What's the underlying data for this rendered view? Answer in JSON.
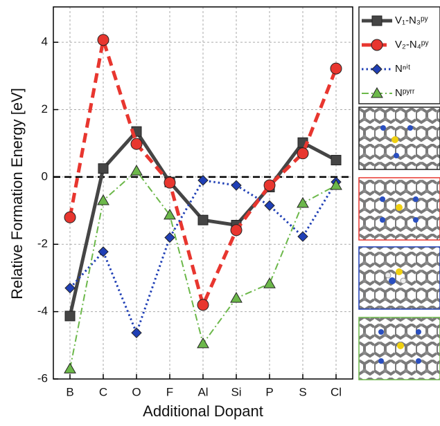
{
  "chart_data": {
    "type": "line",
    "y_label": "Relative Formation Energy  [eV]",
    "x_label": "Additional Dopant",
    "categories": [
      "B",
      "C",
      "O",
      "F",
      "Al",
      "Si",
      "P",
      "S",
      "Cl"
    ],
    "series": [
      {
        "name": "V₁-N₃ᵖʸ",
        "color": "#454545",
        "line_style": "solid",
        "marker": "square",
        "values": [
          -4.13,
          0.25,
          1.35,
          -0.15,
          -1.28,
          -1.43,
          -0.3,
          1.02,
          0.5
        ]
      },
      {
        "name": "V₂-N₄ᵖʸ",
        "color": "#e8362f",
        "line_style": "dashed",
        "marker": "circle",
        "values": [
          -1.2,
          4.07,
          0.98,
          -0.17,
          -3.8,
          -1.58,
          -0.25,
          0.7,
          3.22
        ]
      },
      {
        "name": "Nⁿⁱᵗ",
        "color": "#1f3fb5",
        "line_style": "dotted",
        "marker": "diamond",
        "values": [
          -3.3,
          -2.22,
          -4.63,
          -1.8,
          -0.1,
          -0.25,
          -0.85,
          -1.77,
          -0.15
        ]
      },
      {
        "name": "Nᵖʸʳʳ",
        "color": "#6cb84a",
        "line_style": "dashdot",
        "marker": "triangle",
        "values": [
          -5.7,
          -0.7,
          0.18,
          -1.13,
          -4.95,
          -3.6,
          -3.17,
          -0.78,
          -0.25
        ]
      }
    ],
    "ylim": [
      -6,
      5.05
    ],
    "yticks": [
      -6,
      -4,
      -2,
      0,
      2,
      4
    ],
    "grid": true,
    "reference_line": 0
  }
}
